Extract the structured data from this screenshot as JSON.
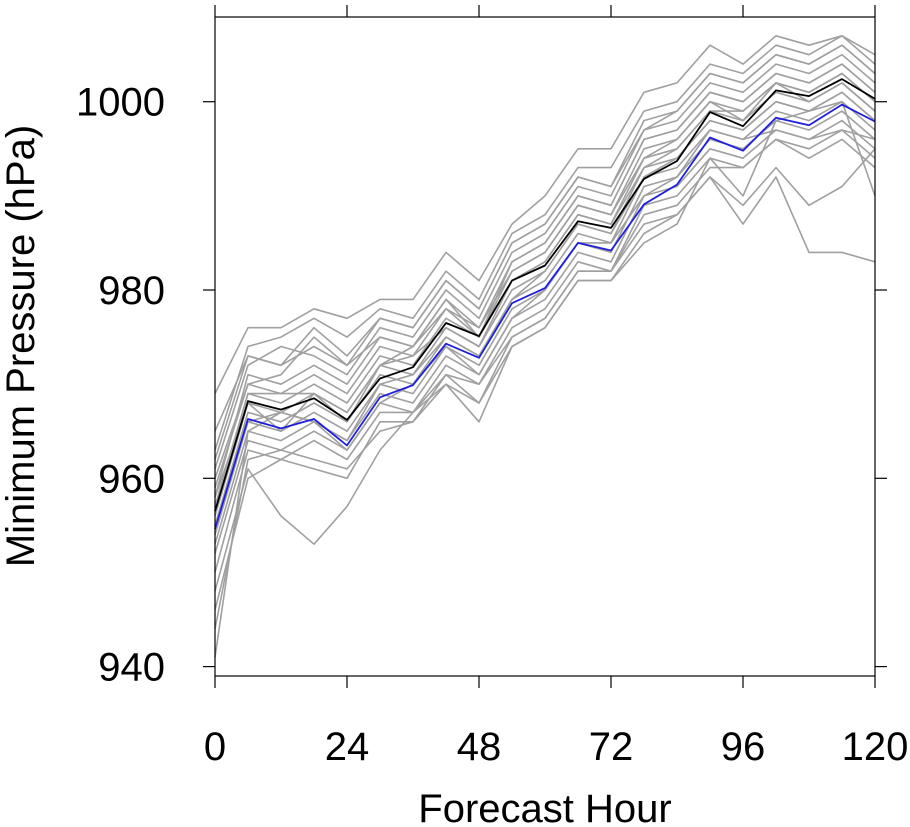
{
  "chart_data": {
    "type": "line",
    "title": "",
    "xlabel": "Forecast Hour",
    "ylabel": "Minimum Pressure (hPa)",
    "xlim": [
      0,
      120
    ],
    "ylim": [
      939,
      1009
    ],
    "x_ticks": [
      0,
      24,
      48,
      72,
      96,
      120
    ],
    "y_ticks": [
      940,
      960,
      980,
      1000
    ],
    "grid": false,
    "legend": "none",
    "colors": {
      "ensemble": "#a0a0a0",
      "mean": "#000000",
      "highlight": "#1f1fe0"
    },
    "x": [
      0,
      6,
      12,
      18,
      24,
      30,
      36,
      42,
      48,
      54,
      60,
      66,
      72,
      78,
      84,
      90,
      96,
      102,
      108,
      114,
      120
    ],
    "series": [
      {
        "role": "ensemble",
        "values": [
          969,
          976,
          976,
          978,
          977,
          979,
          979,
          984,
          981,
          987,
          990,
          995,
          995,
          1001,
          1002,
          1006,
          1004,
          1007,
          1006,
          1007,
          1005
        ]
      },
      {
        "role": "ensemble",
        "values": [
          963,
          974,
          975,
          977,
          975,
          978,
          977,
          982,
          979,
          986,
          988,
          993,
          993,
          999,
          1000,
          1004,
          1003,
          1006,
          1005,
          1007,
          1004
        ]
      },
      {
        "role": "ensemble",
        "values": [
          965,
          973,
          972,
          976,
          973,
          977,
          976,
          981,
          978,
          985,
          987,
          992,
          991,
          998,
          999,
          1003,
          1002,
          1005,
          1004,
          1006,
          1003
        ]
      },
      {
        "role": "ensemble",
        "values": [
          961,
          972,
          974,
          973,
          971,
          976,
          975,
          980,
          977,
          984,
          986,
          991,
          990,
          997,
          998,
          1002,
          1001,
          1004,
          1003,
          1005,
          1002
        ]
      },
      {
        "role": "ensemble",
        "values": [
          958,
          971,
          970,
          972,
          970,
          975,
          974,
          979,
          976,
          983,
          985,
          990,
          989,
          996,
          997,
          1001,
          1000,
          1003,
          1002,
          1004,
          1001
        ]
      },
      {
        "role": "ensemble",
        "values": [
          959,
          970,
          969,
          971,
          969,
          974,
          973,
          978,
          975,
          982,
          984,
          989,
          988,
          995,
          996,
          1000,
          999,
          1002,
          1001,
          1003,
          1000
        ]
      },
      {
        "role": "ensemble",
        "values": [
          957,
          969,
          968,
          970,
          968,
          973,
          972,
          977,
          975,
          981,
          983,
          988,
          987,
          994,
          995,
          999,
          998,
          1001,
          1000,
          1002,
          999
        ]
      },
      {
        "role": "ensemble",
        "values": [
          956,
          968,
          967,
          969,
          967,
          972,
          971,
          976,
          974,
          980,
          982,
          987,
          986,
          993,
          994,
          998,
          997,
          1000,
          999,
          1001,
          998
        ]
      },
      {
        "role": "ensemble",
        "values": [
          955,
          967,
          966,
          968,
          966,
          971,
          970,
          975,
          973,
          979,
          981,
          986,
          985,
          992,
          993,
          997,
          996,
          999,
          998,
          1000,
          997
        ]
      },
      {
        "role": "ensemble",
        "values": [
          954,
          966,
          965,
          967,
          965,
          970,
          969,
          974,
          972,
          978,
          980,
          985,
          984,
          991,
          992,
          996,
          995,
          998,
          997,
          999,
          996
        ]
      },
      {
        "role": "ensemble",
        "values": [
          953,
          965,
          964,
          966,
          964,
          969,
          968,
          973,
          971,
          977,
          979,
          984,
          983,
          990,
          991,
          995,
          994,
          997,
          996,
          998,
          995
        ]
      },
      {
        "role": "ensemble",
        "values": [
          952,
          964,
          963,
          965,
          963,
          968,
          967,
          972,
          970,
          976,
          978,
          983,
          982,
          989,
          990,
          994,
          993,
          996,
          995,
          997,
          994
        ]
      },
      {
        "role": "ensemble",
        "values": [
          950,
          963,
          962,
          964,
          962,
          967,
          967,
          971,
          970,
          975,
          977,
          982,
          982,
          988,
          989,
          993,
          993,
          996,
          994,
          996,
          993
        ]
      },
      {
        "role": "ensemble",
        "values": [
          948,
          961,
          956,
          953,
          957,
          963,
          967,
          970,
          966,
          974,
          976,
          981,
          981,
          985,
          987,
          994,
          990,
          998,
          999,
          1000,
          990
        ]
      },
      {
        "role": "ensemble",
        "values": [
          946,
          960,
          962,
          961,
          960,
          966,
          966,
          970,
          968,
          974,
          976,
          981,
          981,
          986,
          988,
          992,
          987,
          992,
          984,
          984,
          983
        ]
      },
      {
        "role": "ensemble",
        "values": [
          944,
          962,
          963,
          962,
          961,
          965,
          966,
          971,
          968,
          975,
          977,
          982,
          982,
          987,
          988,
          992,
          989,
          993,
          989,
          991,
          995
        ]
      },
      {
        "role": "ensemble",
        "values": [
          941,
          965,
          967,
          966,
          963,
          968,
          970,
          974,
          971,
          977,
          980,
          985,
          985,
          990,
          992,
          997,
          996,
          997,
          996,
          997,
          996
        ]
      },
      {
        "role": "ensemble",
        "values": [
          960,
          970,
          971,
          975,
          972,
          975,
          974,
          979,
          975,
          983,
          985,
          990,
          989,
          996,
          997,
          1001,
          1000,
          1003,
          1002,
          1004,
          1001
        ]
      },
      {
        "role": "ensemble",
        "values": [
          962,
          973,
          972,
          974,
          972,
          977,
          976,
          981,
          978,
          985,
          987,
          992,
          991,
          997,
          999,
          1003,
          1002,
          1005,
          1004,
          1006,
          1003
        ]
      },
      {
        "role": "ensemble",
        "values": [
          957,
          969,
          969,
          969,
          967,
          972,
          974,
          978,
          976,
          982,
          984,
          989,
          988,
          994,
          996,
          1000,
          998,
          1002,
          1001,
          1003,
          1000
        ]
      },
      {
        "role": "ensemble",
        "values": [
          955,
          966,
          967,
          966,
          964,
          970,
          971,
          975,
          973,
          979,
          982,
          987,
          986,
          992,
          994,
          998,
          997,
          1000,
          999,
          1001,
          998
        ]
      },
      {
        "role": "ensemble",
        "values": [
          958,
          968,
          965,
          969,
          966,
          972,
          973,
          976,
          974,
          981,
          983,
          988,
          987,
          993,
          995,
          999,
          999,
          1002,
          1000,
          1002,
          999
        ]
      },
      {
        "role": "mean",
        "values": [
          956.5,
          968.2,
          967.3,
          968.5,
          966.2,
          970.6,
          971.8,
          976.5,
          975.1,
          981.0,
          982.6,
          987.3,
          986.6,
          991.8,
          993.7,
          998.9,
          997.4,
          1001.2,
          1000.6,
          1002.4,
          1000.3
        ]
      },
      {
        "role": "highlight",
        "values": [
          954.6,
          966.3,
          965.3,
          966.3,
          963.5,
          968.6,
          969.9,
          974.3,
          972.8,
          978.6,
          980.2,
          985.0,
          984.2,
          989.1,
          991.2,
          996.2,
          994.8,
          998.3,
          997.5,
          999.7,
          997.9
        ]
      }
    ]
  }
}
